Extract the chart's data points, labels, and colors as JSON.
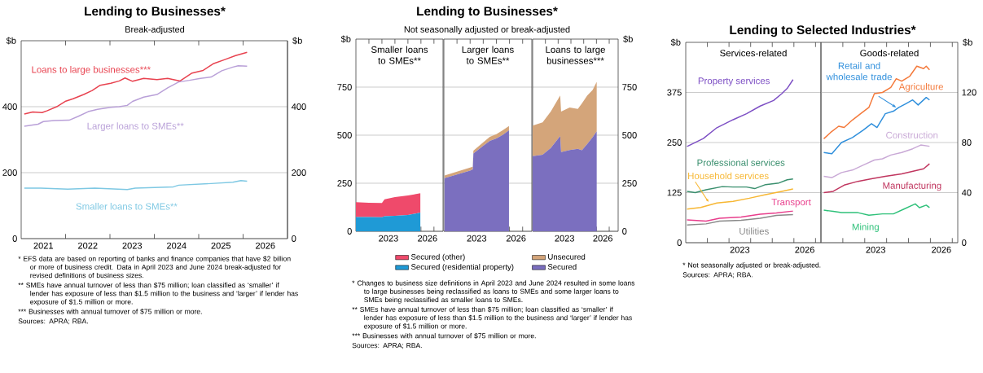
{
  "chart_data": [
    {
      "type": "line",
      "title": "Lending to Businesses*",
      "subtitle": "Break-adjusted",
      "ylabel": "$b",
      "y2label": "$b",
      "xlim": [
        2021,
        2027
      ],
      "xticks": [
        {
          "value": 2021.5,
          "label": "2021"
        },
        {
          "value": 2022.5,
          "label": "2022"
        },
        {
          "value": 2023.5,
          "label": "2023"
        },
        {
          "value": 2024.5,
          "label": "2024"
        },
        {
          "value": 2025.5,
          "label": "2025"
        },
        {
          "value": 2026.5,
          "label": "2026"
        },
        {
          "value": 2022,
          "label": null
        },
        {
          "value": 2023,
          "label": null
        },
        {
          "value": 2024,
          "label": null
        },
        {
          "value": 2025,
          "label": null
        },
        {
          "value": 2026,
          "label": null
        }
      ],
      "ylim": [
        0,
        600
      ],
      "yticks": [
        0,
        200,
        400
      ],
      "y2lim": [
        0,
        600
      ],
      "y2ticks": [
        0,
        200,
        400
      ],
      "grid": "y",
      "series": [
        {
          "name": "Loans to large businesses***",
          "color": "#e8424f",
          "x": [
            2021.07,
            2021.26,
            2021.47,
            2021.59,
            2021.8,
            2021.99,
            2022.17,
            2022.41,
            2022.6,
            2022.78,
            2023.02,
            2023.21,
            2023.34,
            2023.51,
            2023.76,
            2024.06,
            2024.3,
            2024.58,
            2024.85,
            2025.1,
            2025.34,
            2025.59,
            2025.83,
            2026.09
          ],
          "values": [
            378,
            384,
            382,
            388,
            400,
            416,
            424,
            437,
            449,
            465,
            471,
            478,
            487,
            477,
            486,
            482,
            486,
            478,
            502,
            510,
            531,
            543,
            555,
            565
          ]
        },
        {
          "name": "Larger loans to SMEs**",
          "color": "#b9a0d8",
          "x": [
            2021.07,
            2021.38,
            2021.5,
            2021.74,
            2022.08,
            2022.29,
            2022.51,
            2022.72,
            2023.02,
            2023.21,
            2023.39,
            2023.51,
            2023.76,
            2024.06,
            2024.3,
            2024.55,
            2024.79,
            2025.04,
            2025.28,
            2025.52,
            2025.77,
            2025.89,
            2026.09
          ],
          "values": [
            341,
            347,
            355,
            358,
            359,
            371,
            385,
            392,
            398,
            400,
            404,
            416,
            429,
            437,
            457,
            475,
            480,
            486,
            490,
            509,
            520,
            524,
            523
          ]
        },
        {
          "name": "Smaller loans to SMEs**",
          "color": "#7ec8e3",
          "x": [
            2021.07,
            2021.44,
            2022.05,
            2022.66,
            2023.39,
            2023.57,
            2024.43,
            2024.55,
            2025.28,
            2025.77,
            2025.95,
            2026.09
          ],
          "values": [
            153,
            153,
            150,
            153,
            149,
            153,
            157,
            162,
            167,
            171,
            176,
            174
          ]
        }
      ],
      "annotations": [
        "* EFS data are based on reporting of banks and finance companies that have $2 billion or more of business credit. Data in April 2023 and June 2024 break-adjusted for revised definitions of business sizes.",
        "** SMEs have annual turnover of less than $75 million; loan classified as ‘smaller’ if lender has exposure of less than $1.5 million to the business and ‘larger’ if lender has exposure of $1.5 million or more.",
        "*** Businesses with annual turnover of $75 million or more.",
        "Sources: APRA; RBA."
      ]
    },
    {
      "type": "other",
      "title": "Lending to Businesses*",
      "subtitle": "Not seasonally adjusted or break-adjusted",
      "annotations": [
        "* Changes to business size definitions in April 2023 and June 2024 resulted in some loans to large businesses being reclassified as loans to SMEs and some larger loans to SMEs being reclassified as smaller loans to SMEs.",
        "** SMEs have annual turnover of less than $75 million; loan classified as ‘smaller’ if lender has exposure of less than $1.5 million to the business and ‘larger’ if lender has exposure of $1.5 million or more.",
        "*** Businesses with annual turnover of $75 million or more.",
        "Sources: APRA; RBA."
      ]
    },
    {
      "type": "area",
      "stacked": true,
      "title": "Smaller loans to SMEs**",
      "ylabel": "$b",
      "grid": "y",
      "legend": "bottom",
      "xlim": [
        2021,
        2027.7
      ],
      "xticks": [
        {
          "value": 2023.5,
          "label": "2023"
        },
        {
          "value": 2026.5,
          "label": "2026"
        },
        {
          "value": 2022,
          "label": null
        },
        {
          "value": 2023,
          "label": null
        },
        {
          "value": 2024,
          "label": null
        },
        {
          "value": 2025,
          "label": null
        },
        {
          "value": 2026,
          "label": null
        },
        {
          "value": 2027,
          "label": null
        }
      ],
      "ylim": [
        0,
        1000
      ],
      "yticks": [
        0,
        250,
        500,
        750
      ],
      "x": [
        2021.0,
        2022.0,
        2023.0,
        2023.2,
        2024.0,
        2025.0,
        2025.96
      ],
      "series": [
        {
          "name": "Secured (residential property)",
          "color": "#1f9ad6",
          "values": [
            74,
            74,
            73,
            78,
            80,
            85,
            97
          ]
        },
        {
          "name": "Secured (other)",
          "color": "#ef4a6b",
          "values": [
            78,
            74,
            74,
            88,
            98,
            101,
            101
          ]
        }
      ]
    },
    {
      "type": "area",
      "stacked": true,
      "title": "Larger loans to SMEs**",
      "grid": "y",
      "tick_labels": "x",
      "legend": "bottom",
      "xlim": [
        2021,
        2027.7
      ],
      "xticks": [
        {
          "value": 2023.5,
          "label": "2023"
        },
        {
          "value": 2026.5,
          "label": "2026"
        },
        {
          "value": 2022,
          "label": null
        },
        {
          "value": 2023,
          "label": null
        },
        {
          "value": 2024,
          "label": null
        },
        {
          "value": 2025,
          "label": null
        },
        {
          "value": 2026,
          "label": null
        },
        {
          "value": 2027,
          "label": null
        }
      ],
      "ylim": [
        0,
        1000
      ],
      "yticks": [
        0,
        250,
        500,
        750
      ],
      "x": [
        2021.05,
        2022.0,
        2023.0,
        2023.2,
        2023.25,
        2024.0,
        2024.5,
        2025.0,
        2025.5,
        2025.96
      ],
      "series": [
        {
          "name": "Secured",
          "color": "#7b6fbf",
          "values": [
            276,
            296,
            316,
            322,
            405,
            445,
            470,
            483,
            502,
            525
          ]
        },
        {
          "name": "Unsecured",
          "color": "#d4a57a",
          "values": [
            14,
            14,
            16,
            14,
            14,
            18,
            22,
            22,
            24,
            23
          ]
        }
      ]
    },
    {
      "type": "area",
      "stacked": true,
      "title": "Loans to large businesses***",
      "y2label": "$b",
      "grid": "y",
      "xlim": [
        2021,
        2027.7
      ],
      "xticks": [
        {
          "value": 2023.5,
          "label": "2023"
        },
        {
          "value": 2026.5,
          "label": "2026"
        },
        {
          "value": 2022,
          "label": null
        },
        {
          "value": 2023,
          "label": null
        },
        {
          "value": 2024,
          "label": null
        },
        {
          "value": 2025,
          "label": null
        },
        {
          "value": 2026,
          "label": null
        },
        {
          "value": 2027,
          "label": null
        }
      ],
      "y2lim": [
        0,
        1000
      ],
      "y2ticks": [
        0,
        250,
        500,
        750
      ],
      "x": [
        2021.0,
        2021.78,
        2022.42,
        2023.16,
        2023.23,
        2023.9,
        2024.54,
        2024.86,
        2025.28,
        2025.7,
        2026.02
      ],
      "series": [
        {
          "color": "#7b6fbf",
          "axis": "y2",
          "values": [
            391,
            398,
            433,
            496,
            412,
            423,
            429,
            422,
            454,
            489,
            520
          ]
        },
        {
          "color": "#d4a57a",
          "axis": "y2",
          "values": [
            159,
            169,
            190,
            211,
            211,
            221,
            208,
            243,
            253,
            246,
            258
          ]
        }
      ]
    },
    {
      "type": "other",
      "title": "Lending to Selected Industries*",
      "annotations": [
        "* Not seasonally adjusted or break-adjusted.",
        "Sources: APRA; RBA."
      ]
    },
    {
      "type": "line",
      "title": "Services-related",
      "ylabel": "$b",
      "grid": "y",
      "xlim": [
        2021,
        2027.25
      ],
      "xticks": [
        {
          "value": 2023.5,
          "label": "2023"
        },
        {
          "value": 2026.5,
          "label": "2026"
        },
        {
          "value": 2022,
          "label": null
        },
        {
          "value": 2023,
          "label": null
        },
        {
          "value": 2024,
          "label": null
        },
        {
          "value": 2025,
          "label": null
        },
        {
          "value": 2026,
          "label": null
        },
        {
          "value": 2027,
          "label": null
        }
      ],
      "ylim": [
        0,
        500
      ],
      "yticks": [
        0,
        125,
        250,
        375
      ],
      "series": [
        {
          "name": "Property services",
          "color": "#7d4fc4",
          "x": [
            2021.06,
            2021.81,
            2022.44,
            2023.19,
            2023.81,
            2024.44,
            2025.06,
            2025.44,
            2025.69,
            2025.96
          ],
          "values": [
            240,
            260,
            287,
            307,
            322,
            341,
            355,
            372,
            385,
            407
          ]
        },
        {
          "name": "Professional services",
          "color": "#3a8f6e",
          "x": [
            2021.06,
            2021.44,
            2021.94,
            2022.69,
            2023.19,
            2023.81,
            2024.19,
            2024.69,
            2025.31,
            2025.69,
            2025.96
          ],
          "values": [
            128,
            125,
            132,
            140,
            139,
            139,
            135,
            145,
            149,
            157,
            159
          ]
        },
        {
          "name": "Household services",
          "color": "#f7b733",
          "x": [
            2021.06,
            2021.69,
            2022.44,
            2023.19,
            2023.94,
            2024.69,
            2025.44,
            2025.96
          ],
          "values": [
            84,
            88,
            99,
            103,
            111,
            120,
            128,
            134
          ]
        },
        {
          "name": "Transport",
          "color": "#e83e8c",
          "x": [
            2021.06,
            2021.94,
            2022.56,
            2023.56,
            2024.44,
            2025.19,
            2025.96
          ],
          "values": [
            57,
            54,
            61,
            64,
            71,
            74,
            79
          ]
        },
        {
          "name": "Utilities",
          "color": "#8a8a8a",
          "x": [
            2021.06,
            2021.94,
            2022.56,
            2023.56,
            2024.44,
            2025.19,
            2025.96
          ],
          "values": [
            44,
            47,
            54,
            56,
            61,
            68,
            70
          ]
        }
      ]
    },
    {
      "type": "line",
      "title": "Goods-related",
      "y2label": "$b",
      "grid": "y",
      "xlim": [
        2021,
        2027.25
      ],
      "xticks": [
        {
          "value": 2023.5,
          "label": "2023"
        },
        {
          "value": 2026.5,
          "label": "2026"
        },
        {
          "value": 2022,
          "label": null
        },
        {
          "value": 2023,
          "label": null
        },
        {
          "value": 2024,
          "label": null
        },
        {
          "value": 2025,
          "label": null
        },
        {
          "value": 2026,
          "label": null
        },
        {
          "value": 2027,
          "label": null
        }
      ],
      "y2lim": [
        0,
        160
      ],
      "y2ticks": [
        0,
        40,
        80,
        120
      ],
      "series": [
        {
          "name": "Agriculture",
          "color": "#f4793a",
          "axis": "y2",
          "x": [
            2021.13,
            2021.44,
            2021.81,
            2022.06,
            2022.44,
            2022.81,
            2023.19,
            2023.44,
            2023.81,
            2024.19,
            2024.44,
            2024.69,
            2025.06,
            2025.38,
            2025.69,
            2025.81,
            2025.96
          ],
          "values": [
            83,
            88,
            93,
            92,
            98,
            103,
            108,
            119,
            120,
            124,
            131,
            129,
            133,
            141,
            139,
            141,
            138
          ]
        },
        {
          "name": "Retail and wholesale trade",
          "color": "#2f8fdc",
          "axis": "y2",
          "x": [
            2021.13,
            2021.5,
            2021.94,
            2022.44,
            2022.94,
            2023.31,
            2023.56,
            2023.94,
            2024.31,
            2024.56,
            2024.88,
            2025.19,
            2025.44,
            2025.81,
            2025.96
          ],
          "values": [
            72,
            71,
            80,
            84,
            90,
            95,
            92,
            103,
            105,
            108,
            111,
            114,
            110,
            116,
            114
          ]
        },
        {
          "name": "Construction",
          "color": "#c9a9d6",
          "axis": "y2",
          "x": [
            2021.13,
            2021.5,
            2021.94,
            2022.44,
            2022.94,
            2023.44,
            2023.81,
            2024.19,
            2024.69,
            2025.19,
            2025.56,
            2025.96
          ],
          "values": [
            53,
            52,
            56,
            58,
            62,
            66,
            67,
            70,
            72,
            75,
            78,
            77
          ]
        },
        {
          "name": "Manufacturing",
          "color": "#c0365f",
          "axis": "y2",
          "x": [
            2021.13,
            2021.56,
            2022.06,
            2022.69,
            2023.31,
            2023.94,
            2024.69,
            2025.19,
            2025.69,
            2025.96
          ],
          "values": [
            40,
            41,
            46,
            49,
            51,
            53,
            55,
            57,
            59,
            63
          ]
        },
        {
          "name": "Mining",
          "color": "#2fc17a",
          "axis": "y2",
          "x": [
            2021.13,
            2021.56,
            2021.94,
            2022.69,
            2023.19,
            2023.81,
            2024.31,
            2024.81,
            2025.31,
            2025.5,
            2025.81,
            2025.96
          ],
          "values": [
            26,
            25,
            24,
            24,
            22,
            23,
            23,
            27,
            31,
            28,
            30,
            28
          ]
        }
      ]
    }
  ]
}
